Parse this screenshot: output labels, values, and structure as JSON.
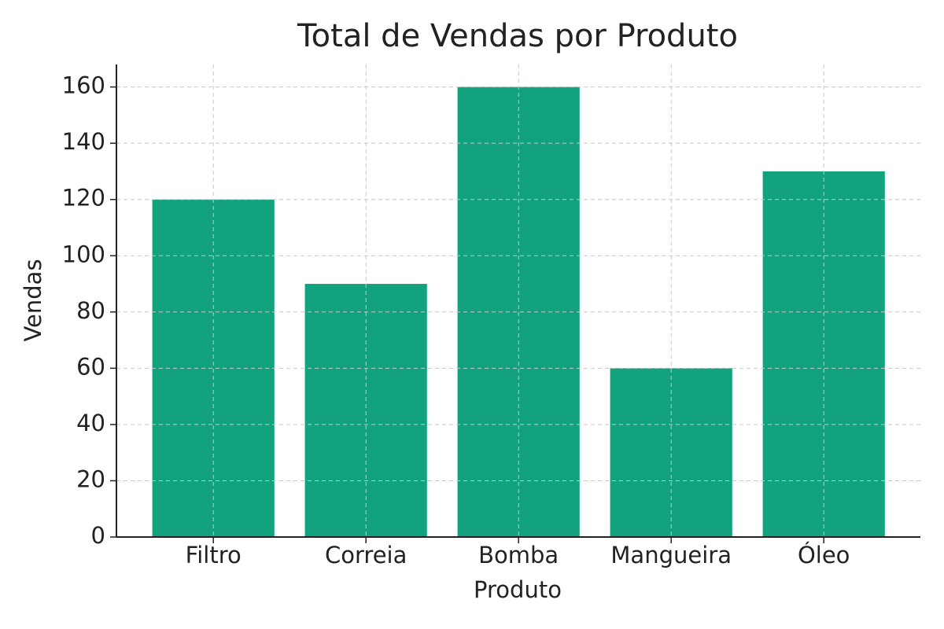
{
  "chart_data": {
    "type": "bar",
    "title": "Total de Vendas por Produto",
    "x_label": "Produto",
    "y_label": "Vendas",
    "categories": [
      "Filtro",
      "Correia",
      "Bomba",
      "Mangueira",
      "Óleo"
    ],
    "values": [
      120,
      90,
      160,
      60,
      130
    ],
    "color": "#12a37e",
    "ylim": [
      0,
      168
    ],
    "yticks": [
      0,
      20,
      40,
      60,
      80,
      100,
      120,
      140,
      160
    ],
    "grid": true
  }
}
